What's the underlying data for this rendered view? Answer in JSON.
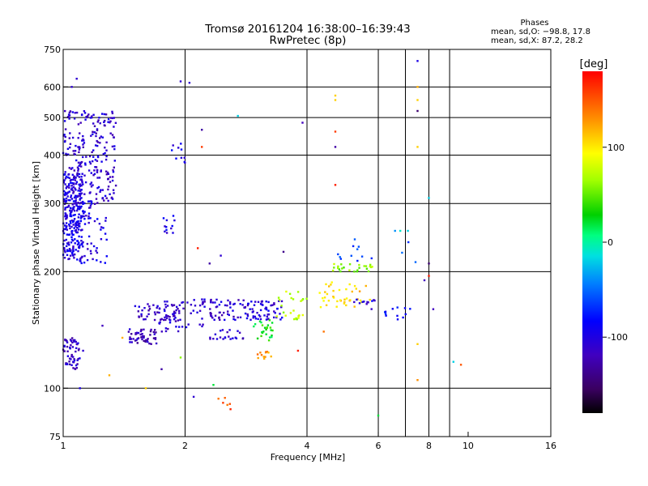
{
  "chart_data": {
    "type": "scatter",
    "title": "Tromsø 20161204 16:38:00–16:39:43",
    "subtitle": "RwPretec (8p)",
    "xlabel": "Frequency [MHz]",
    "ylabel": "Stationary phase Virtual Height [km]",
    "x_scale": "log",
    "y_scale": "log",
    "xlim": [
      1,
      16
    ],
    "ylim": [
      75,
      750
    ],
    "x_ticks": [
      1,
      2,
      4,
      6,
      8,
      10,
      16
    ],
    "x_tick_labels": [
      "1",
      "2",
      "4",
      "6",
      "8",
      "10",
      "16"
    ],
    "x_gridlines": [
      2,
      4,
      6,
      7,
      8,
      9
    ],
    "y_ticks": [
      75,
      100,
      200,
      300,
      400,
      500,
      600,
      750
    ],
    "y_tick_labels": [
      "75",
      "100",
      "200",
      "300",
      "400",
      "500",
      "600",
      "750"
    ],
    "y_gridlines": [
      100,
      200,
      300,
      400,
      500,
      600
    ],
    "grid": true,
    "colorbar": {
      "label": "[deg]",
      "range": [
        -180,
        180
      ],
      "tick_values": [
        100,
        0,
        -100
      ],
      "tick_labels": [
        "100",
        "0",
        "-100"
      ]
    },
    "phases": {
      "heading": "Phases",
      "line_O": "mean, sd,O: −98.8, 17.8",
      "line_X": "mean, sd,X:  87.2, 28.2"
    },
    "clusters": [
      {
        "f": [
          1.0,
          1.12
        ],
        "h": [
          215,
          360
        ],
        "phase": -100,
        "n": 260
      },
      {
        "f": [
          1.0,
          1.35
        ],
        "h": [
          300,
          520
        ],
        "phase": -110,
        "n": 240
      },
      {
        "f": [
          1.05,
          1.3
        ],
        "h": [
          210,
          300
        ],
        "phase": -100,
        "n": 60
      },
      {
        "f": [
          1.0,
          1.1
        ],
        "h": [
          112,
          135
        ],
        "phase": -115,
        "n": 60
      },
      {
        "f": [
          1.45,
          1.7
        ],
        "h": [
          130,
          142
        ],
        "phase": -120,
        "n": 50
      },
      {
        "f": [
          1.5,
          1.9
        ],
        "h": [
          150,
          165
        ],
        "phase": -115,
        "n": 45
      },
      {
        "f": [
          1.7,
          2.25
        ],
        "h": [
          140,
          170
        ],
        "phase": -110,
        "n": 60
      },
      {
        "f": [
          1.75,
          1.9
        ],
        "h": [
          245,
          280
        ],
        "phase": -100,
        "n": 12
      },
      {
        "f": [
          1.85,
          2.0
        ],
        "h": [
          380,
          430
        ],
        "phase": -95,
        "n": 10
      },
      {
        "f": [
          2.3,
          2.9
        ],
        "h": [
          150,
          170
        ],
        "phase": -110,
        "n": 60
      },
      {
        "f": [
          2.3,
          2.8
        ],
        "h": [
          133,
          142
        ],
        "phase": -115,
        "n": 22
      },
      {
        "f": [
          2.9,
          3.5
        ],
        "h": [
          150,
          168
        ],
        "phase": -105,
        "n": 55
      },
      {
        "f": [
          2.95,
          3.3
        ],
        "h": [
          132,
          150
        ],
        "phase": 30,
        "n": 25
      },
      {
        "f": [
          3.0,
          3.3
        ],
        "h": [
          118,
          125
        ],
        "phase": 130,
        "n": 12
      },
      {
        "f": [
          3.35,
          4.0
        ],
        "h": [
          150,
          178
        ],
        "phase": 70,
        "n": 25
      },
      {
        "f": [
          4.3,
          5.9
        ],
        "h": [
          160,
          188
        ],
        "phase": 110,
        "n": 40
      },
      {
        "f": [
          4.6,
          5.9
        ],
        "h": [
          200,
          210
        ],
        "phase": 60,
        "n": 25
      },
      {
        "f": [
          5.2,
          5.9
        ],
        "h": [
          160,
          170
        ],
        "phase": -100,
        "n": 12
      },
      {
        "f": [
          6.2,
          7.2
        ],
        "h": [
          150,
          165
        ],
        "phase": -80,
        "n": 12
      },
      {
        "f": [
          2.4,
          2.6
        ],
        "h": [
          88,
          95
        ],
        "phase": 150,
        "n": 6
      },
      {
        "f": [
          4.5,
          7.5
        ],
        "h": [
          210,
          250
        ],
        "phase": -60,
        "n": 14
      }
    ],
    "points": [
      {
        "f": 1.05,
        "h": 600,
        "phase": -110
      },
      {
        "f": 1.08,
        "h": 630,
        "phase": -110
      },
      {
        "f": 1.95,
        "h": 620,
        "phase": -110
      },
      {
        "f": 2.05,
        "h": 615,
        "phase": -110
      },
      {
        "f": 2.2,
        "h": 465,
        "phase": -130
      },
      {
        "f": 2.7,
        "h": 505,
        "phase": -20
      },
      {
        "f": 3.9,
        "h": 485,
        "phase": -120
      },
      {
        "f": 4.7,
        "h": 570,
        "phase": 110
      },
      {
        "f": 4.7,
        "h": 555,
        "phase": 110
      },
      {
        "f": 4.7,
        "h": 460,
        "phase": 160
      },
      {
        "f": 4.7,
        "h": 420,
        "phase": -130
      },
      {
        "f": 4.7,
        "h": 335,
        "phase": 170
      },
      {
        "f": 7.5,
        "h": 700,
        "phase": -100
      },
      {
        "f": 7.5,
        "h": 600,
        "phase": 120
      },
      {
        "f": 7.5,
        "h": 555,
        "phase": 110
      },
      {
        "f": 7.5,
        "h": 520,
        "phase": -150
      },
      {
        "f": 7.5,
        "h": 420,
        "phase": 110
      },
      {
        "f": 8.0,
        "h": 310,
        "phase": -20
      },
      {
        "f": 2.2,
        "h": 420,
        "phase": 160
      },
      {
        "f": 2.15,
        "h": 230,
        "phase": 170
      },
      {
        "f": 2.3,
        "h": 210,
        "phase": -130
      },
      {
        "f": 2.45,
        "h": 220,
        "phase": -110
      },
      {
        "f": 3.5,
        "h": 225,
        "phase": -140
      },
      {
        "f": 1.25,
        "h": 145,
        "phase": -120
      },
      {
        "f": 1.4,
        "h": 135,
        "phase": 120
      },
      {
        "f": 1.6,
        "h": 100,
        "phase": 110
      },
      {
        "f": 1.75,
        "h": 112,
        "phase": -130
      },
      {
        "f": 2.1,
        "h": 95,
        "phase": -110
      },
      {
        "f": 2.35,
        "h": 102,
        "phase": 20
      },
      {
        "f": 1.12,
        "h": 125,
        "phase": -110
      },
      {
        "f": 1.1,
        "h": 100,
        "phase": -100
      },
      {
        "f": 1.3,
        "h": 108,
        "phase": 120
      },
      {
        "f": 1.95,
        "h": 120,
        "phase": 60
      },
      {
        "f": 3.8,
        "h": 125,
        "phase": 170
      },
      {
        "f": 4.4,
        "h": 140,
        "phase": 140
      },
      {
        "f": 7.5,
        "h": 105,
        "phase": 130
      },
      {
        "f": 7.5,
        "h": 130,
        "phase": 110
      },
      {
        "f": 9.2,
        "h": 117,
        "phase": -20
      },
      {
        "f": 9.6,
        "h": 115,
        "phase": 150
      },
      {
        "f": 6.0,
        "h": 85,
        "phase": 20
      },
      {
        "f": 7.8,
        "h": 190,
        "phase": -120
      },
      {
        "f": 8.0,
        "h": 195,
        "phase": 170
      },
      {
        "f": 8.0,
        "h": 210,
        "phase": -150
      },
      {
        "f": 8.2,
        "h": 160,
        "phase": -120
      },
      {
        "f": 7.1,
        "h": 255,
        "phase": -20
      },
      {
        "f": 6.8,
        "h": 255,
        "phase": -10
      },
      {
        "f": 6.6,
        "h": 255,
        "phase": -40
      }
    ]
  }
}
